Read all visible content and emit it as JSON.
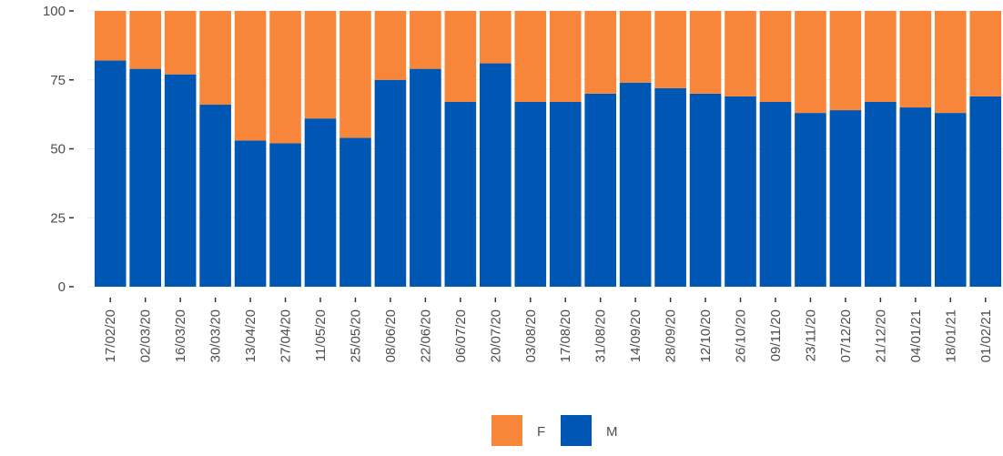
{
  "chart_data": {
    "type": "stacked_bar",
    "categories": [
      "17/02/20",
      "02/03/20",
      "16/03/20",
      "30/03/20",
      "13/04/20",
      "27/04/20",
      "11/05/20",
      "25/05/20",
      "08/06/20",
      "22/06/20",
      "06/07/20",
      "20/07/20",
      "03/08/20",
      "17/08/20",
      "31/08/20",
      "14/09/20",
      "28/09/20",
      "12/10/20",
      "26/10/20",
      "09/11/20",
      "23/11/20",
      "07/12/20",
      "21/12/20",
      "04/01/21",
      "18/01/21",
      "01/02/21"
    ],
    "series": [
      {
        "name": "M",
        "color": "#0057b3",
        "values": [
          82,
          79,
          77,
          66,
          53,
          52,
          61,
          54,
          75,
          79,
          67,
          81,
          67,
          67,
          70,
          74,
          72,
          70,
          69,
          67,
          63,
          64,
          67,
          65,
          63,
          69
        ]
      },
      {
        "name": "F",
        "color": "#f8863a",
        "values": [
          18,
          21,
          23,
          34,
          47,
          48,
          39,
          46,
          25,
          21,
          33,
          19,
          33,
          33,
          30,
          26,
          28,
          30,
          31,
          33,
          37,
          36,
          33,
          35,
          37,
          31
        ]
      }
    ],
    "ylim": [
      0,
      100
    ],
    "yticks": [
      0,
      25,
      50,
      75,
      100
    ],
    "grid": true
  }
}
